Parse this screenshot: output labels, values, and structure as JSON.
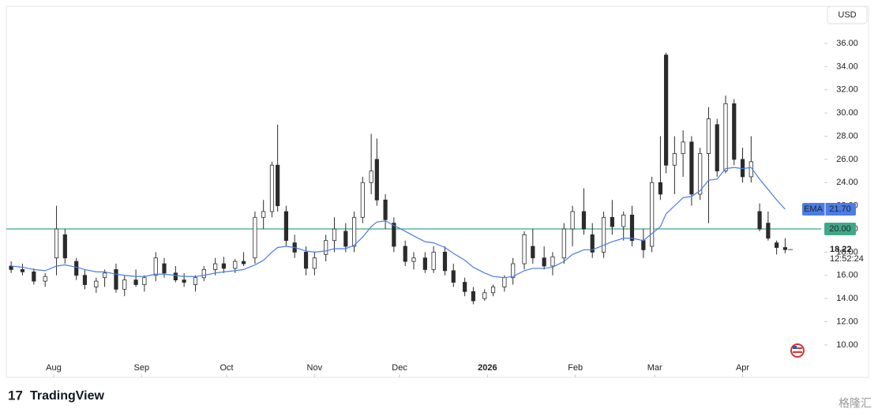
{
  "chart_data": {
    "type": "candlestick",
    "x": [
      -15,
      -11,
      -7,
      -3,
      1,
      4,
      8,
      11,
      15,
      18,
      22,
      25,
      29,
      32,
      36,
      39,
      43,
      46,
      50,
      53,
      57,
      60,
      64,
      67,
      71,
      74,
      77,
      79,
      82,
      85,
      89,
      92,
      96,
      99,
      103,
      106,
      109,
      112,
      114,
      117,
      120,
      124,
      127,
      131,
      134,
      138,
      141,
      145,
      148,
      152,
      155,
      159,
      162,
      166,
      169,
      173,
      176,
      180,
      183,
      187,
      190,
      194,
      197,
      201,
      204,
      208,
      211,
      214,
      216,
      219,
      222,
      225,
      228,
      231,
      234,
      237,
      240,
      243,
      246,
      249,
      252,
      255,
      258
    ],
    "open": [
      16.8,
      16.5,
      16.3,
      15.5,
      17.5,
      19.5,
      17.2,
      16.0,
      15.0,
      15.8,
      16.5,
      14.8,
      15.6,
      15.2,
      16.0,
      17.0,
      16.2,
      15.6,
      15.2,
      15.8,
      16.5,
      17.0,
      16.6,
      17.2,
      17.5,
      21.0,
      21.5,
      25.5,
      21.5,
      18.8,
      18.0,
      16.6,
      17.8,
      19.0,
      19.8,
      18.5,
      21.0,
      24.0,
      26.0,
      22.5,
      20.5,
      18.5,
      17.2,
      17.5,
      16.5,
      18.0,
      16.4,
      15.4,
      14.6,
      14.0,
      14.5,
      15.0,
      15.8,
      17.0,
      18.5,
      17.5,
      16.8,
      17.5,
      20.0,
      21.5,
      19.5,
      18.0,
      21.0,
      20.2,
      21.2,
      19.0,
      18.5,
      24.0,
      35.0,
      25.5,
      26.5,
      27.5,
      23.0,
      26.5,
      29.0,
      25.0,
      30.8,
      26.0,
      24.5,
      21.5,
      20.5,
      18.8,
      18.4
    ],
    "high": [
      17.2,
      17.0,
      16.6,
      16.2,
      22.0,
      20.0,
      17.5,
      16.5,
      15.8,
      16.5,
      17.0,
      16.0,
      16.5,
      16.0,
      18.0,
      17.5,
      16.8,
      16.2,
      16.0,
      16.8,
      17.5,
      17.6,
      17.4,
      18.0,
      21.5,
      22.5,
      25.8,
      29.0,
      22.0,
      19.5,
      18.5,
      18.0,
      19.5,
      21.0,
      20.5,
      21.5,
      24.5,
      28.2,
      27.8,
      23.0,
      21.0,
      19.0,
      18.0,
      18.0,
      18.5,
      18.5,
      17.0,
      15.8,
      15.0,
      14.8,
      15.2,
      16.0,
      17.5,
      19.8,
      20.0,
      18.5,
      18.0,
      20.5,
      22.0,
      23.5,
      20.5,
      21.5,
      22.5,
      21.5,
      22.0,
      20.0,
      24.5,
      28.0,
      35.2,
      28.0,
      28.5,
      28.0,
      27.0,
      30.5,
      29.5,
      31.5,
      31.2,
      27.0,
      28.0,
      22.2,
      21.5,
      19.0,
      19.2
    ],
    "low": [
      16.2,
      16.0,
      15.2,
      15.0,
      16.0,
      17.0,
      15.6,
      14.8,
      14.5,
      15.0,
      14.5,
      14.2,
      15.0,
      14.6,
      15.5,
      15.8,
      15.4,
      15.0,
      14.6,
      15.5,
      16.0,
      16.2,
      16.2,
      16.8,
      17.0,
      20.0,
      21.0,
      21.5,
      18.5,
      17.5,
      16.0,
      16.0,
      17.2,
      18.0,
      18.0,
      18.0,
      20.5,
      23.0,
      22.0,
      20.0,
      18.0,
      16.8,
      16.5,
      16.2,
      16.2,
      16.0,
      15.0,
      14.2,
      13.5,
      13.8,
      14.2,
      14.6,
      15.2,
      16.5,
      17.0,
      16.5,
      16.0,
      17.0,
      18.5,
      19.5,
      17.5,
      17.5,
      19.5,
      19.0,
      18.5,
      17.5,
      18.0,
      22.5,
      24.8,
      23.0,
      24.5,
      22.0,
      22.5,
      20.5,
      24.5,
      24.8,
      25.5,
      24.0,
      24.0,
      19.8,
      19.0,
      17.8,
      17.9
    ],
    "close": [
      16.5,
      16.3,
      15.5,
      15.9,
      20.0,
      17.5,
      16.0,
      15.2,
      15.5,
      16.2,
      14.8,
      15.6,
      15.2,
      15.8,
      17.5,
      16.2,
      15.6,
      15.4,
      15.8,
      16.5,
      17.0,
      16.6,
      17.2,
      17.0,
      21.0,
      21.5,
      25.5,
      22.0,
      19.0,
      18.0,
      16.6,
      17.5,
      19.0,
      20.0,
      18.5,
      21.0,
      24.0,
      25.0,
      22.5,
      20.8,
      18.5,
      17.2,
      17.5,
      16.5,
      18.0,
      16.4,
      15.4,
      14.6,
      13.8,
      14.5,
      15.0,
      15.8,
      17.0,
      19.5,
      17.5,
      16.8,
      17.6,
      20.0,
      21.5,
      20.0,
      18.0,
      21.0,
      20.2,
      21.2,
      19.0,
      18.2,
      24.0,
      23.0,
      25.5,
      26.5,
      27.5,
      23.0,
      26.5,
      29.5,
      25.0,
      30.8,
      26.0,
      24.5,
      25.8,
      20.0,
      19.2,
      18.4,
      18.22
    ],
    "ema": [
      16.8,
      16.7,
      16.5,
      16.4,
      16.8,
      16.9,
      16.7,
      16.5,
      16.3,
      16.3,
      16.1,
      16.0,
      15.9,
      15.9,
      16.1,
      16.1,
      16.0,
      15.9,
      15.9,
      16.0,
      16.2,
      16.3,
      16.4,
      16.5,
      16.9,
      17.3,
      18.0,
      18.4,
      18.5,
      18.4,
      18.1,
      18.0,
      18.1,
      18.3,
      18.3,
      18.6,
      19.3,
      20.2,
      20.6,
      20.7,
      20.3,
      19.8,
      19.4,
      18.9,
      18.8,
      18.4,
      17.9,
      17.3,
      16.7,
      16.2,
      15.9,
      15.8,
      15.9,
      16.4,
      16.6,
      16.6,
      16.7,
      17.2,
      17.8,
      18.2,
      18.2,
      18.6,
      18.9,
      19.2,
      19.2,
      19.0,
      19.6,
      20.2,
      21.3,
      22.0,
      22.7,
      22.8,
      23.3,
      24.2,
      24.3,
      25.2,
      25.3,
      25.2,
      25.3,
      24.3,
      23.4,
      22.5,
      21.7
    ],
    "up_color": "#ffffff",
    "down_color": "#2b2b2b",
    "wick_color": "#2b2b2b",
    "ema_color": "#4a7de8",
    "xlim": [
      -16.7,
      270.7
    ],
    "ylim": [
      7.2,
      39.2
    ],
    "xticks": [
      {
        "value": 0,
        "label": "Aug"
      },
      {
        "value": 31,
        "label": "Sep"
      },
      {
        "value": 61,
        "label": "Oct"
      },
      {
        "value": 92,
        "label": "Nov"
      },
      {
        "value": 122,
        "label": "Dec"
      },
      {
        "value": 153,
        "label": "2026"
      },
      {
        "value": 184,
        "label": "Feb"
      },
      {
        "value": 212,
        "label": "Mar"
      },
      {
        "value": 243,
        "label": "Apr"
      }
    ],
    "yticks": [
      {
        "value": 10,
        "label": "10.00"
      },
      {
        "value": 12,
        "label": "12.00"
      },
      {
        "value": 14,
        "label": "14.00"
      },
      {
        "value": 16,
        "label": "16.00"
      },
      {
        "value": 18,
        "label": "18.00"
      },
      {
        "value": 20,
        "label": "20.00"
      },
      {
        "value": 22,
        "label": "22.00"
      },
      {
        "value": 24,
        "label": "24.00"
      },
      {
        "value": 26,
        "label": "26.00"
      },
      {
        "value": 28,
        "label": "28.00"
      },
      {
        "value": 30,
        "label": "30.00"
      },
      {
        "value": 32,
        "label": "32.00"
      },
      {
        "value": 34,
        "label": "34.00"
      },
      {
        "value": 36,
        "label": "36.00"
      }
    ],
    "hline": {
      "value": 20,
      "label": "20.00",
      "color": "#3fa88a"
    },
    "ema_name": "EMA",
    "ema_last": {
      "value": 21.7,
      "label": "21.70"
    },
    "last_price": {
      "value": 18.22,
      "label": "18.22"
    },
    "countdown": "12:52:24",
    "currency": "USD",
    "brand": "TradingView",
    "watermark": "格隆汇"
  }
}
